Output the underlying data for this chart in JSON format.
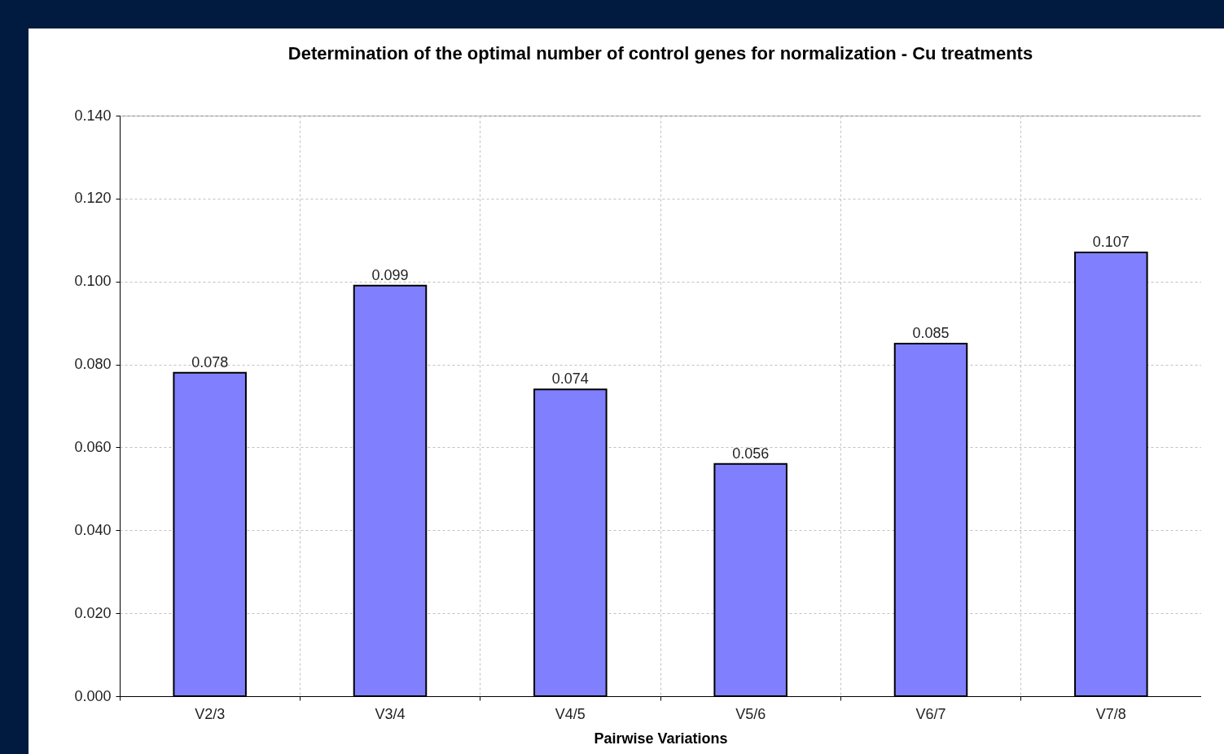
{
  "chart_data": {
    "type": "bar",
    "title": "Determination of the optimal number of control genes for normalization - Cu treatments",
    "xlabel": "Pairwise Variations",
    "categories": [
      "V2/3",
      "V3/4",
      "V4/5",
      "V5/6",
      "V6/7",
      "V7/8"
    ],
    "values": [
      0.078,
      0.099,
      0.074,
      0.056,
      0.085,
      0.107
    ],
    "color": "#8080ff",
    "ylim": [
      0,
      0.14
    ],
    "yticks": [
      {
        "value": 0,
        "label": "0.000"
      },
      {
        "value": 0.02,
        "label": "0.020"
      },
      {
        "value": 0.04,
        "label": "0.040"
      },
      {
        "value": 0.06,
        "label": "0.060"
      },
      {
        "value": 0.08,
        "label": "0.080"
      },
      {
        "value": 0.1,
        "label": "0.100"
      },
      {
        "value": 0.12,
        "label": "0.120"
      },
      {
        "value": 0.14,
        "label": "0.140"
      }
    ],
    "grid": true,
    "data_labels": true
  }
}
